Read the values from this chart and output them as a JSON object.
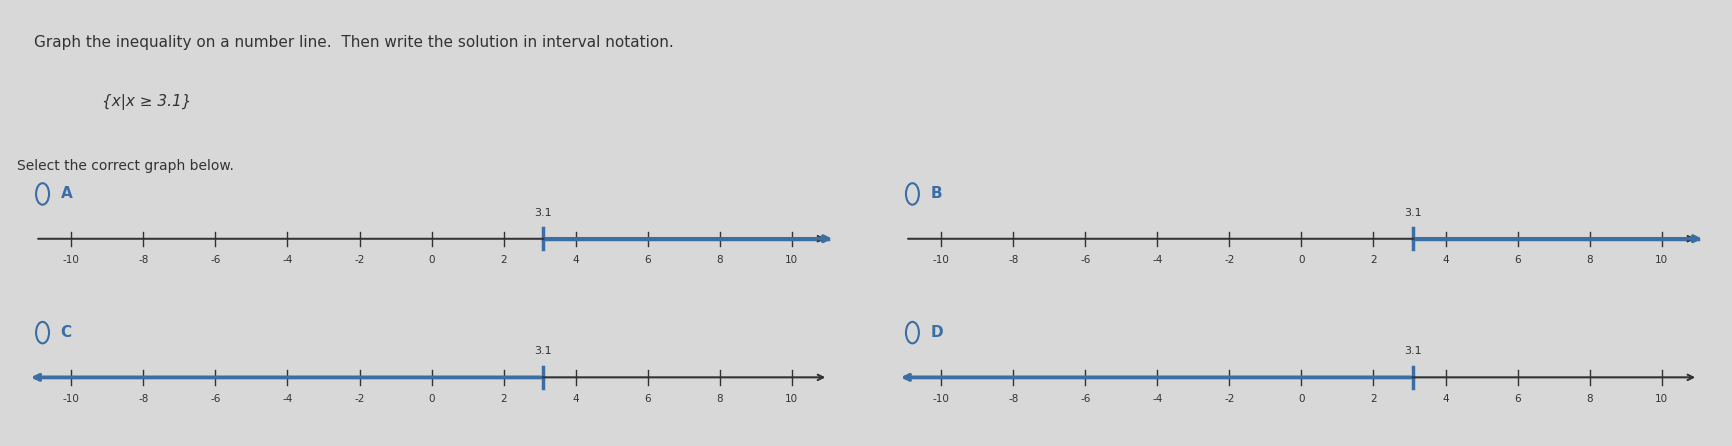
{
  "title_line1": "Graph the inequality on a number line.  Then write the solution in interval notation.",
  "title_line2": "{x|x ≥ 3.1}",
  "subtitle": "Select the correct graph below.",
  "bg_color": "#d8d8d8",
  "panel_bg": "#e8e8e8",
  "blue_color": "#3a6ea5",
  "axis_color": "#333333",
  "text_color": "#333333",
  "label_color": "#3a6ea5",
  "options": [
    "A",
    "B",
    "C",
    "D"
  ],
  "threshold": 3.1,
  "xlim": [
    -11,
    11
  ],
  "tick_positions": [
    -10,
    -8,
    -6,
    -4,
    -2,
    0,
    2,
    4,
    6,
    8,
    10
  ],
  "graphs": {
    "A": {
      "direction": "right",
      "bracket": "closed",
      "label": "A"
    },
    "B": {
      "direction": "right",
      "bracket": "square_closed",
      "label": "B"
    },
    "C": {
      "direction": "left",
      "bracket": "closed",
      "label": "C"
    },
    "D": {
      "direction": "left",
      "bracket": "square_closed",
      "label": "D"
    }
  }
}
